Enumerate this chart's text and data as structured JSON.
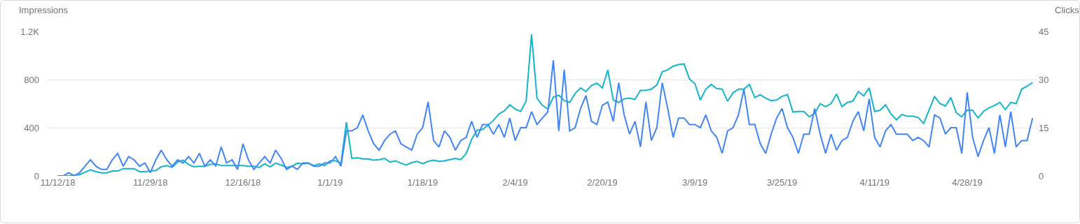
{
  "chart_data": {
    "type": "line",
    "ylabel": "Impressions",
    "y2label": "Clicks",
    "x": [
      "2018-11-12",
      "2018-11-13",
      "2018-11-14",
      "2018-11-15",
      "2018-11-16",
      "2018-11-17",
      "2018-11-18",
      "2018-11-19",
      "2018-11-20",
      "2018-11-21",
      "2018-11-22",
      "2018-11-23",
      "2018-11-24",
      "2018-11-25",
      "2018-11-26",
      "2018-11-27",
      "2018-11-28",
      "2018-11-29",
      "2018-11-30",
      "2018-12-01",
      "2018-12-02",
      "2018-12-03",
      "2018-12-04",
      "2018-12-05",
      "2018-12-06",
      "2018-12-07",
      "2018-12-08",
      "2018-12-09",
      "2018-12-10",
      "2018-12-11",
      "2018-12-12",
      "2018-12-13",
      "2018-12-14",
      "2018-12-15",
      "2018-12-16",
      "2018-12-17",
      "2018-12-18",
      "2018-12-19",
      "2018-12-20",
      "2018-12-21",
      "2018-12-22",
      "2018-12-23",
      "2018-12-24",
      "2018-12-25",
      "2018-12-26",
      "2018-12-27",
      "2018-12-28",
      "2018-12-29",
      "2018-12-30",
      "2018-12-31",
      "2019-01-01",
      "2019-01-02",
      "2019-01-03",
      "2019-01-04",
      "2019-01-05",
      "2019-01-06",
      "2019-01-07",
      "2019-01-08",
      "2019-01-09",
      "2019-01-10",
      "2019-01-11",
      "2019-01-12",
      "2019-01-13",
      "2019-01-14",
      "2019-01-15",
      "2019-01-16",
      "2019-01-17",
      "2019-01-18",
      "2019-01-19",
      "2019-01-20",
      "2019-01-21",
      "2019-01-22",
      "2019-01-23",
      "2019-01-24",
      "2019-01-25",
      "2019-01-26",
      "2019-01-27",
      "2019-01-28",
      "2019-01-29",
      "2019-01-30",
      "2019-01-31",
      "2019-02-01",
      "2019-02-02",
      "2019-02-03",
      "2019-02-04",
      "2019-02-05",
      "2019-02-06",
      "2019-02-07",
      "2019-02-08",
      "2019-02-09",
      "2019-02-10",
      "2019-02-11",
      "2019-02-12",
      "2019-02-13",
      "2019-02-14",
      "2019-02-15",
      "2019-02-16",
      "2019-02-17",
      "2019-02-18",
      "2019-02-19",
      "2019-02-20",
      "2019-02-21",
      "2019-02-22",
      "2019-02-23",
      "2019-02-24",
      "2019-02-25",
      "2019-02-26",
      "2019-02-27",
      "2019-02-28",
      "2019-03-01",
      "2019-03-02",
      "2019-03-03",
      "2019-03-04",
      "2019-03-05",
      "2019-03-06",
      "2019-03-07",
      "2019-03-08",
      "2019-03-09",
      "2019-03-10",
      "2019-03-11",
      "2019-03-12",
      "2019-03-13",
      "2019-03-14",
      "2019-03-15",
      "2019-03-16",
      "2019-03-17",
      "2019-03-18",
      "2019-03-19",
      "2019-03-20",
      "2019-03-21",
      "2019-03-22",
      "2019-03-23",
      "2019-03-24",
      "2019-03-25",
      "2019-03-26",
      "2019-03-27",
      "2019-03-28",
      "2019-03-29",
      "2019-03-30",
      "2019-03-31",
      "2019-04-01",
      "2019-04-02",
      "2019-04-03",
      "2019-04-04",
      "2019-04-05",
      "2019-04-06",
      "2019-04-07",
      "2019-04-08",
      "2019-04-09",
      "2019-04-10",
      "2019-04-11",
      "2019-04-12",
      "2019-04-13",
      "2019-04-14",
      "2019-04-15",
      "2019-04-16",
      "2019-04-17",
      "2019-04-18",
      "2019-04-19",
      "2019-04-20",
      "2019-04-21",
      "2019-04-22",
      "2019-04-23",
      "2019-04-24",
      "2019-04-25",
      "2019-04-26",
      "2019-04-27",
      "2019-04-28",
      "2019-04-29",
      "2019-04-30",
      "2019-05-01",
      "2019-05-02",
      "2019-05-03",
      "2019-05-04",
      "2019-05-05",
      "2019-05-06",
      "2019-05-07",
      "2019-05-08",
      "2019-05-09",
      "2019-05-10"
    ],
    "series": [
      {
        "color": "#12b5cb",
        "axis": "y",
        "values": [
          0,
          0,
          0,
          5,
          10,
          30,
          50,
          35,
          25,
          25,
          40,
          40,
          60,
          60,
          60,
          35,
          35,
          40,
          45,
          75,
          85,
          70,
          115,
          130,
          95,
          75,
          80,
          80,
          95,
          100,
          85,
          85,
          85,
          85,
          85,
          80,
          80,
          70,
          100,
          75,
          105,
          90,
          70,
          80,
          105,
          100,
          105,
          85,
          100,
          85,
          125,
          125,
          105,
          445,
          145,
          150,
          140,
          140,
          130,
          135,
          145,
          115,
          125,
          105,
          90,
          110,
          120,
          100,
          120,
          130,
          120,
          125,
          135,
          145,
          135,
          185,
          305,
          380,
          385,
          420,
          460,
          515,
          540,
          590,
          555,
          535,
          620,
          1175,
          645,
          585,
          555,
          655,
          670,
          625,
          610,
          685,
          730,
          700,
          750,
          770,
          730,
          880,
          630,
          610,
          640,
          645,
          635,
          710,
          710,
          720,
          755,
          865,
          880,
          910,
          925,
          930,
          805,
          765,
          630,
          720,
          760,
          725,
          720,
          620,
          690,
          720,
          720,
          760,
          650,
          675,
          645,
          625,
          630,
          660,
          675,
          530,
          535,
          535,
          490,
          520,
          600,
          575,
          600,
          680,
          575,
          610,
          620,
          700,
          665,
          730,
          535,
          545,
          590,
          515,
          465,
          510,
          495,
          495,
          485,
          435,
          545,
          660,
          600,
          580,
          650,
          525,
          490,
          545,
          545,
          480,
          535,
          565,
          585,
          610,
          550,
          610,
          600,
          720,
          745,
          775
        ]
      },
      {
        "color": "#4285f4",
        "axis": "y2",
        "values": [
          0,
          0,
          1,
          0,
          1,
          3,
          5,
          3,
          2,
          2,
          5,
          7,
          3,
          6,
          5,
          3,
          4,
          1,
          5,
          8,
          5,
          3,
          5,
          4,
          6,
          4,
          7,
          3,
          5,
          3,
          9,
          4,
          5,
          2,
          10,
          5,
          2,
          4,
          6,
          4,
          8,
          5.5,
          2,
          3,
          2,
          4,
          4,
          3,
          3,
          4,
          4,
          6,
          3,
          14,
          14,
          15,
          19,
          14,
          10,
          8,
          11,
          13,
          14,
          10,
          9,
          8,
          13,
          15,
          23,
          11,
          9,
          14,
          12,
          8,
          11,
          12,
          17,
          12,
          16,
          16,
          13,
          16,
          12,
          18,
          11,
          15,
          15,
          20,
          16,
          18,
          20,
          36,
          14,
          33,
          14,
          15,
          21,
          25,
          17,
          16,
          22,
          23,
          17,
          29,
          19,
          13,
          17,
          9,
          23,
          11,
          15,
          29,
          21,
          12,
          18,
          18,
          16,
          16,
          15,
          19,
          14,
          12,
          7,
          14,
          15,
          19,
          27,
          16,
          16,
          10,
          7,
          13,
          18,
          21,
          15,
          12,
          7,
          13,
          13,
          21,
          13,
          7,
          13,
          8,
          11,
          12,
          17,
          20,
          14,
          24,
          12,
          9,
          14,
          16,
          13,
          13,
          13,
          11,
          12,
          11,
          9,
          19,
          18,
          13,
          15,
          15,
          7,
          26,
          12,
          6,
          11,
          15,
          7,
          19,
          9,
          20,
          9,
          11,
          11,
          18
        ]
      }
    ],
    "xlim": [
      "2018-11-10",
      "2019-05-11"
    ],
    "xticks": [
      {
        "value": "2018-11-12",
        "label": "11/12/18"
      },
      {
        "value": "2018-11-29",
        "label": "11/29/18"
      },
      {
        "value": "2018-12-16",
        "label": "12/16/18"
      },
      {
        "value": "2019-01-01",
        "label": "1/1/19"
      },
      {
        "value": "2019-01-18",
        "label": "1/18/19"
      },
      {
        "value": "2019-02-04",
        "label": "2/4/19"
      },
      {
        "value": "2019-02-20",
        "label": "2/20/19"
      },
      {
        "value": "2019-03-09",
        "label": "3/9/19"
      },
      {
        "value": "2019-03-25",
        "label": "3/25/19"
      },
      {
        "value": "2019-04-11",
        "label": "4/11/19"
      },
      {
        "value": "2019-04-28",
        "label": "4/28/19"
      }
    ],
    "ylim": [
      0,
      1200
    ],
    "yticks": [
      0,
      400,
      800,
      {
        "value": 1200,
        "label": "1.2K"
      }
    ],
    "y2lim": [
      0,
      45
    ],
    "y2ticks": [
      0,
      15,
      30,
      45
    ],
    "grid": "y",
    "legend": false,
    "marker": "none",
    "line_style": "solid"
  }
}
